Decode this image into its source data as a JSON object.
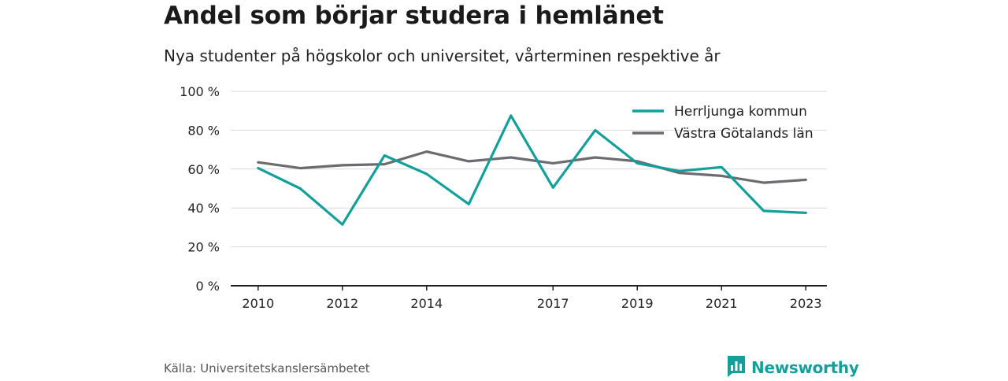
{
  "title": "Andel som börjar studera i hemlänet",
  "subtitle": "Nya studenter på högskolor och universitet, vårterminen respektive år",
  "source": "Källa: Universitetskanslersämbetet",
  "brand": "Newsworthy",
  "colors": {
    "brand": "#14a09a",
    "series1": "#14a09a",
    "series2": "#6b6b70",
    "grid": "#d9d9d9",
    "axis": "#222222"
  },
  "chart_data": {
    "type": "line",
    "x": [
      2010,
      2011,
      2012,
      2013,
      2014,
      2015,
      2016,
      2017,
      2018,
      2019,
      2020,
      2021,
      2022,
      2023
    ],
    "x_tick_labels": [
      "2010",
      "2012",
      "2014",
      "2017",
      "2019",
      "2021",
      "2023"
    ],
    "y_tick_labels": [
      "0 %",
      "20 %",
      "40 %",
      "60 %",
      "80 %",
      "100 %"
    ],
    "ylim": [
      0,
      100
    ],
    "grid": true,
    "legend_position": "top-right",
    "series": [
      {
        "name": "Herrljunga kommun",
        "color": "#14a09a",
        "values": [
          60.5,
          50.0,
          31.5,
          67.0,
          57.5,
          42.0,
          87.5,
          50.5,
          80.0,
          63.0,
          59.0,
          61.0,
          38.5,
          37.5
        ]
      },
      {
        "name": "Västra Götalands län",
        "color": "#6b6b70",
        "values": [
          63.5,
          60.5,
          62.0,
          62.5,
          69.0,
          64.0,
          66.0,
          63.0,
          66.0,
          64.0,
          58.0,
          56.5,
          53.0,
          54.5
        ]
      }
    ]
  }
}
